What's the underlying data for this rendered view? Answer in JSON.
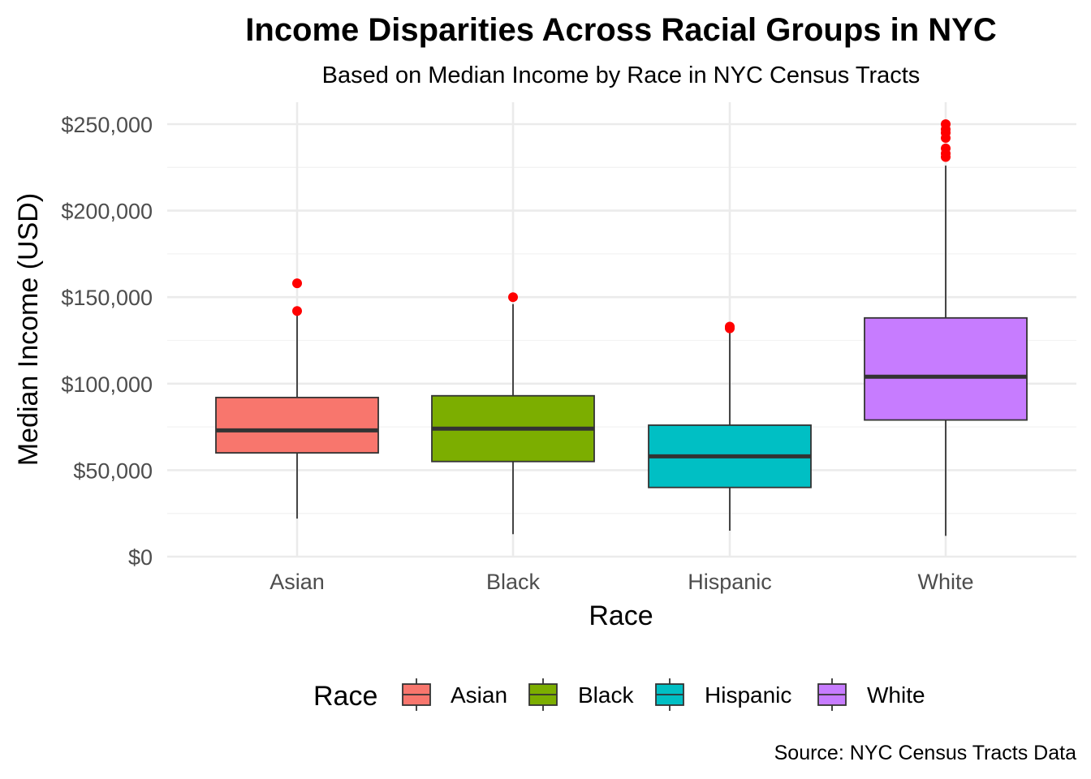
{
  "chart_data": {
    "type": "box",
    "title": "Income Disparities Across Racial Groups in NYC",
    "subtitle": "Based on Median Income by Race in NYC Census Tracts",
    "xlabel": "Race",
    "ylabel": "Median Income (USD)",
    "caption": "Source: NYC Census Tracts Data",
    "ylim": [
      0,
      262000
    ],
    "yticks": [
      0,
      50000,
      100000,
      150000,
      200000,
      250000
    ],
    "ytick_labels": [
      "$0",
      "$50,000",
      "$100,000",
      "$150,000",
      "$200,000",
      "$250,000"
    ],
    "categories": [
      "Asian",
      "Black",
      "Hispanic",
      "White"
    ],
    "boxes": [
      {
        "name": "Asian",
        "whisker_low": 22000,
        "q1": 60000,
        "median": 73000,
        "q3": 92000,
        "whisker_high": 143000,
        "outliers": [
          142000,
          158000
        ],
        "color": "#F8766D"
      },
      {
        "name": "Black",
        "whisker_low": 13000,
        "q1": 55000,
        "median": 74000,
        "q3": 93000,
        "whisker_high": 146000,
        "outliers": [
          150000
        ],
        "color": "#7CAE00"
      },
      {
        "name": "Hispanic",
        "whisker_low": 15000,
        "q1": 40000,
        "median": 58000,
        "q3": 76000,
        "whisker_high": 131000,
        "outliers": [
          132000,
          133000
        ],
        "color": "#00BFC4"
      },
      {
        "name": "White",
        "whisker_low": 12000,
        "q1": 79000,
        "median": 104000,
        "q3": 138000,
        "whisker_high": 226000,
        "outliers": [
          231000,
          233000,
          236000,
          242000,
          245000,
          247000,
          250000
        ],
        "color": "#C77CFF"
      }
    ],
    "outlier_color": "#FF0000",
    "grid": true,
    "legend": {
      "title": "Race",
      "position": "bottom",
      "entries": [
        "Asian",
        "Black",
        "Hispanic",
        "White"
      ]
    }
  }
}
